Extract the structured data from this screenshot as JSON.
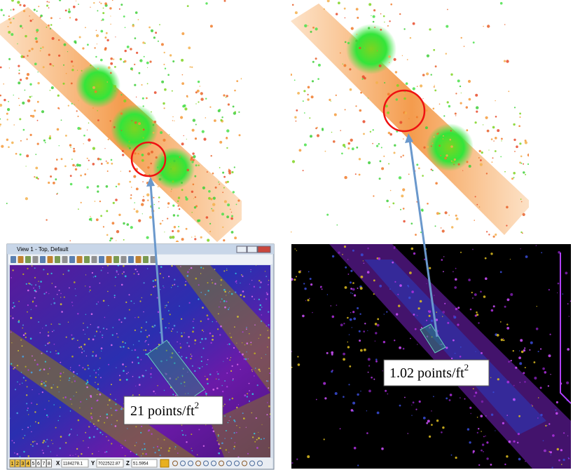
{
  "figure": {
    "window_title": "View 1 - Top, Default",
    "left_label": {
      "text": "21 points/ft",
      "sup": "2"
    },
    "right_label": {
      "text": "1.02 points/ft",
      "sup": "2"
    },
    "status": {
      "x_label": "X",
      "x_value": "1184278.1",
      "y_label": "Y",
      "y_value": "7022522.87",
      "z_label": "Z",
      "z_value": "51.5954"
    },
    "view_buttons": [
      "1",
      "2",
      "3",
      "4",
      "5",
      "6",
      "7",
      "8"
    ]
  }
}
